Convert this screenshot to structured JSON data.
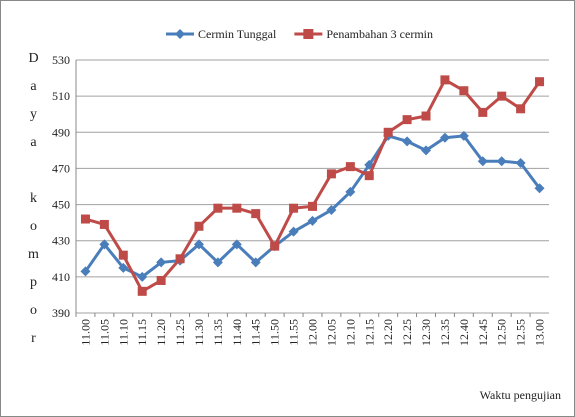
{
  "chart_data": {
    "type": "line",
    "y_label": "Daya kompor",
    "x_label": "Waktu pengujian",
    "categories": [
      "11.00",
      "11.05",
      "11.10",
      "11.15",
      "11.20",
      "11.25",
      "11.30",
      "11.35",
      "11.40",
      "11.45",
      "11.50",
      "11.55",
      "12.00",
      "12.05",
      "12.10",
      "12.15",
      "12.20",
      "12.25",
      "12.30",
      "12.35",
      "12.40",
      "12.45",
      "12.50",
      "12.55",
      "13.00"
    ],
    "series": [
      {
        "name": "Cermin Tunggal",
        "color": "#4a7ebb",
        "marker": "diamond",
        "values": [
          413,
          428,
          415,
          410,
          418,
          419,
          428,
          418,
          428,
          418,
          427,
          435,
          441,
          447,
          457,
          472,
          488,
          485,
          480,
          487,
          488,
          474,
          474,
          473,
          459
        ]
      },
      {
        "name": "Penambahan 3 cermin",
        "color": "#be4b48",
        "marker": "square",
        "values": [
          442,
          439,
          422,
          402,
          408,
          420,
          438,
          448,
          448,
          445,
          427,
          448,
          449,
          467,
          471,
          466,
          490,
          497,
          499,
          519,
          513,
          501,
          510,
          503,
          518
        ]
      }
    ],
    "ylim": [
      390,
      530
    ],
    "yticks": [
      390,
      410,
      430,
      450,
      470,
      490,
      510,
      530
    ],
    "grid": true
  }
}
